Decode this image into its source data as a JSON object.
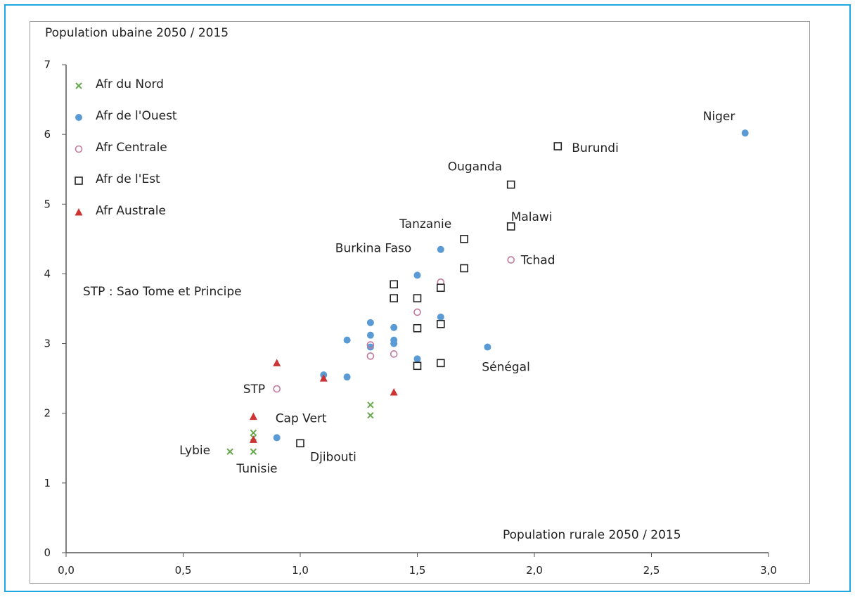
{
  "chart_data": {
    "type": "scatter",
    "title": "",
    "ylabel": "Population ubaine 2050 / 2015",
    "xlabel": "Population rurale 2050 / 2015",
    "xlim": [
      0,
      3
    ],
    "ylim": [
      0,
      7
    ],
    "xticks": [
      "0,0",
      "0,5",
      "1,0",
      "1,5",
      "2,0",
      "2,5",
      "3,0"
    ],
    "yticks": [
      "0",
      "1",
      "2",
      "3",
      "4",
      "5",
      "6",
      "7"
    ],
    "note": "STP : Sao Tome et Principe",
    "legend_position": "top-left",
    "series": [
      {
        "name": "Afr du Nord",
        "marker": "x",
        "color": "#6aa84f",
        "points": [
          [
            0.7,
            1.45
          ],
          [
            0.8,
            1.45
          ],
          [
            0.8,
            1.65
          ],
          [
            0.8,
            1.72
          ],
          [
            1.3,
            1.97
          ],
          [
            1.3,
            2.12
          ]
        ]
      },
      {
        "name": "Afr de l'Ouest",
        "marker": "dot",
        "color": "#5b9bd5",
        "points": [
          [
            0.9,
            1.65
          ],
          [
            1.1,
            2.55
          ],
          [
            1.2,
            2.52
          ],
          [
            1.2,
            3.05
          ],
          [
            1.3,
            2.95
          ],
          [
            1.3,
            3.12
          ],
          [
            1.3,
            3.3
          ],
          [
            1.4,
            3.0
          ],
          [
            1.4,
            3.05
          ],
          [
            1.4,
            3.23
          ],
          [
            1.5,
            2.78
          ],
          [
            1.5,
            3.98
          ],
          [
            1.6,
            3.38
          ],
          [
            1.6,
            4.35
          ],
          [
            1.8,
            2.95
          ],
          [
            2.9,
            6.02
          ]
        ]
      },
      {
        "name": "Afr Centrale",
        "marker": "circle",
        "color": "#c27ba0",
        "points": [
          [
            0.9,
            2.35
          ],
          [
            1.3,
            2.82
          ],
          [
            1.3,
            2.98
          ],
          [
            1.4,
            2.85
          ],
          [
            1.5,
            3.45
          ],
          [
            1.6,
            3.88
          ],
          [
            1.9,
            4.2
          ]
        ]
      },
      {
        "name": "Afr de l'Est",
        "marker": "square",
        "color": "#222222",
        "points": [
          [
            1.0,
            1.57
          ],
          [
            1.4,
            3.65
          ],
          [
            1.4,
            3.85
          ],
          [
            1.5,
            2.68
          ],
          [
            1.5,
            3.22
          ],
          [
            1.5,
            3.65
          ],
          [
            1.6,
            2.72
          ],
          [
            1.6,
            3.28
          ],
          [
            1.6,
            3.8
          ],
          [
            1.7,
            4.08
          ],
          [
            1.7,
            4.5
          ],
          [
            1.9,
            4.68
          ],
          [
            1.9,
            5.28
          ],
          [
            2.1,
            5.83
          ]
        ]
      },
      {
        "name": "Afr Australe",
        "marker": "triangle",
        "color": "#cc3333",
        "points": [
          [
            0.8,
            1.62
          ],
          [
            0.8,
            1.95
          ],
          [
            0.9,
            2.72
          ],
          [
            1.1,
            2.5
          ],
          [
            1.4,
            2.3
          ]
        ]
      }
    ],
    "annotations": [
      {
        "text": "Niger",
        "x": 2.9,
        "y": 6.02
      },
      {
        "text": "Burundi",
        "x": 2.1,
        "y": 5.83
      },
      {
        "text": "Ouganda",
        "x": 1.9,
        "y": 5.28
      },
      {
        "text": "Malawi",
        "x": 1.9,
        "y": 4.68
      },
      {
        "text": "Tanzanie",
        "x": 1.7,
        "y": 4.5
      },
      {
        "text": "Burkina Faso",
        "x": 1.6,
        "y": 4.35
      },
      {
        "text": "Tchad",
        "x": 1.9,
        "y": 4.2
      },
      {
        "text": "Sénégal",
        "x": 1.8,
        "y": 2.95
      },
      {
        "text": "STP",
        "x": 0.9,
        "y": 2.35
      },
      {
        "text": "Cap Vert",
        "x": 0.9,
        "y": 1.65
      },
      {
        "text": "Djibouti",
        "x": 1.0,
        "y": 1.57
      },
      {
        "text": "Lybie",
        "x": 0.7,
        "y": 1.45
      },
      {
        "text": "Tunisie",
        "x": 0.8,
        "y": 1.45
      }
    ]
  }
}
